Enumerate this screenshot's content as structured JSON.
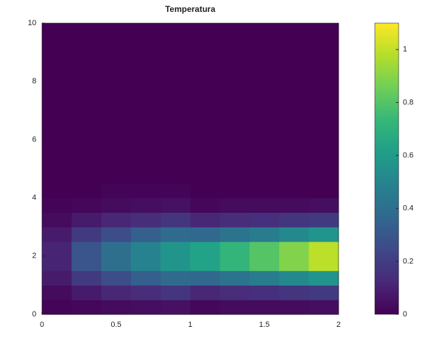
{
  "chart_data": {
    "type": "heatmap",
    "title": "Temperatura",
    "x": [
      0.1,
      0.3,
      0.5,
      0.7,
      0.9,
      1.1,
      1.3,
      1.5,
      1.7,
      1.9
    ],
    "y": [
      0.25,
      0.75,
      1.25,
      1.75,
      2.25,
      2.75,
      3.25,
      3.75,
      4.25,
      4.75,
      5.25,
      5.75,
      6.25,
      6.75,
      7.25,
      7.75,
      8.25,
      8.75,
      9.25,
      9.75
    ],
    "values": [
      [
        0.01,
        0.02,
        0.03,
        0.04,
        0.05,
        0.02,
        0.03,
        0.03,
        0.03,
        0.04
      ],
      [
        0.03,
        0.08,
        0.12,
        0.14,
        0.17,
        0.12,
        0.14,
        0.15,
        0.17,
        0.19
      ],
      [
        0.08,
        0.19,
        0.26,
        0.33,
        0.38,
        0.37,
        0.42,
        0.46,
        0.52,
        0.57
      ],
      [
        0.11,
        0.29,
        0.4,
        0.49,
        0.57,
        0.63,
        0.72,
        0.8,
        0.89,
        0.99
      ],
      [
        0.11,
        0.29,
        0.4,
        0.49,
        0.57,
        0.63,
        0.72,
        0.8,
        0.89,
        0.99
      ],
      [
        0.08,
        0.19,
        0.26,
        0.33,
        0.38,
        0.37,
        0.42,
        0.46,
        0.52,
        0.57
      ],
      [
        0.03,
        0.08,
        0.12,
        0.14,
        0.17,
        0.12,
        0.14,
        0.15,
        0.17,
        0.19
      ],
      [
        0.01,
        0.02,
        0.03,
        0.04,
        0.05,
        0.02,
        0.03,
        0.03,
        0.03,
        0.04
      ],
      [
        0,
        0,
        0.01,
        0.01,
        0.01,
        0,
        0,
        0,
        0,
        0
      ],
      [
        0,
        0,
        0,
        0,
        0,
        0,
        0,
        0,
        0,
        0
      ],
      [
        0,
        0,
        0,
        0,
        0,
        0,
        0,
        0,
        0,
        0
      ],
      [
        0,
        0,
        0,
        0,
        0,
        0,
        0,
        0,
        0,
        0
      ],
      [
        0,
        0,
        0,
        0,
        0,
        0,
        0,
        0,
        0,
        0
      ],
      [
        0,
        0,
        0,
        0,
        0,
        0,
        0,
        0,
        0,
        0
      ],
      [
        0,
        0,
        0,
        0,
        0,
        0,
        0,
        0,
        0,
        0
      ],
      [
        0,
        0,
        0,
        0,
        0,
        0,
        0,
        0,
        0,
        0
      ],
      [
        0,
        0,
        0,
        0,
        0,
        0,
        0,
        0,
        0,
        0
      ],
      [
        0,
        0,
        0,
        0,
        0,
        0,
        0,
        0,
        0,
        0
      ],
      [
        0,
        0,
        0,
        0,
        0,
        0,
        0,
        0,
        0,
        0
      ],
      [
        0,
        0,
        0,
        0,
        0,
        0,
        0,
        0,
        0,
        0
      ]
    ],
    "xlim": [
      0,
      2
    ],
    "xticks": [
      0,
      0.5,
      1,
      1.5,
      2
    ],
    "ylim": [
      0,
      10
    ],
    "yticks": [
      0,
      2,
      4,
      6,
      8,
      10
    ],
    "colormap": "viridis",
    "clim": [
      0,
      1.1
    ],
    "cticks": [
      0,
      0.2,
      0.4,
      0.6,
      0.8,
      1
    ]
  }
}
